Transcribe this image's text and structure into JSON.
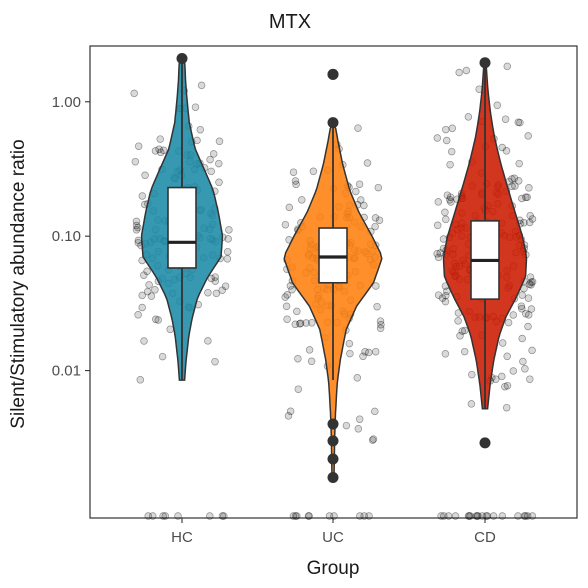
{
  "chart_data": {
    "type": "violin",
    "title": "MTX",
    "xlabel": "Group",
    "ylabel": "Silent/Stimulatory abundance ratio",
    "yscale": "log10",
    "ylim": [
      0.0008,
      2.6
    ],
    "yticks": [
      0.01,
      0.1,
      1.0
    ],
    "ytick_labels": [
      "0.01",
      "0.10",
      "1.00"
    ],
    "categories": [
      "HC",
      "UC",
      "CD"
    ],
    "colors": [
      "#1a8aa6",
      "#ff7f0e",
      "#cc1a00"
    ],
    "grid": false,
    "legend": "none",
    "series": [
      {
        "name": "HC",
        "min": 0.0085,
        "q1": 0.058,
        "median": 0.09,
        "q3": 0.23,
        "max": 2.1,
        "whisker_low": 0.0085,
        "whisker_high": 2.1,
        "outliers": [],
        "n_points": 150,
        "n_zero": 8,
        "density": [
          [
            0.0085,
            0.05
          ],
          [
            0.012,
            0.08
          ],
          [
            0.018,
            0.13
          ],
          [
            0.025,
            0.2
          ],
          [
            0.035,
            0.3
          ],
          [
            0.05,
            0.5
          ],
          [
            0.07,
            0.75
          ],
          [
            0.1,
            0.78
          ],
          [
            0.15,
            0.7
          ],
          [
            0.22,
            0.6
          ],
          [
            0.3,
            0.45
          ],
          [
            0.45,
            0.25
          ],
          [
            0.7,
            0.14
          ],
          [
            1.0,
            0.1
          ],
          [
            1.4,
            0.07
          ],
          [
            2.1,
            0.05
          ]
        ]
      },
      {
        "name": "UC",
        "min": 0.0016,
        "q1": 0.045,
        "median": 0.07,
        "q3": 0.115,
        "max": 1.6,
        "whisker_low": 0.0085,
        "whisker_high": 0.7,
        "outliers": [
          0.0016,
          0.0022,
          0.003,
          0.004,
          0.7,
          1.6
        ],
        "n_points": 160,
        "n_zero": 10,
        "density": [
          [
            0.0016,
            0.02
          ],
          [
            0.003,
            0.03
          ],
          [
            0.005,
            0.05
          ],
          [
            0.008,
            0.08
          ],
          [
            0.012,
            0.14
          ],
          [
            0.02,
            0.25
          ],
          [
            0.03,
            0.45
          ],
          [
            0.045,
            0.78
          ],
          [
            0.07,
            0.95
          ],
          [
            0.1,
            0.75
          ],
          [
            0.15,
            0.5
          ],
          [
            0.22,
            0.32
          ],
          [
            0.35,
            0.18
          ],
          [
            0.5,
            0.1
          ],
          [
            0.7,
            0.03
          ]
        ]
      },
      {
        "name": "CD",
        "min": 0.0029,
        "q1": 0.034,
        "median": 0.066,
        "q3": 0.13,
        "max": 1.95,
        "whisker_low": 0.0052,
        "whisker_high": 1.95,
        "outliers": [
          0.0029
        ],
        "n_points": 210,
        "n_zero": 20,
        "density": [
          [
            0.0052,
            0.05
          ],
          [
            0.008,
            0.1
          ],
          [
            0.012,
            0.17
          ],
          [
            0.018,
            0.27
          ],
          [
            0.025,
            0.4
          ],
          [
            0.035,
            0.6
          ],
          [
            0.05,
            0.78
          ],
          [
            0.07,
            0.8
          ],
          [
            0.1,
            0.72
          ],
          [
            0.15,
            0.58
          ],
          [
            0.22,
            0.45
          ],
          [
            0.35,
            0.3
          ],
          [
            0.55,
            0.18
          ],
          [
            0.85,
            0.1
          ],
          [
            1.3,
            0.05
          ],
          [
            1.95,
            0.02
          ]
        ]
      }
    ]
  }
}
